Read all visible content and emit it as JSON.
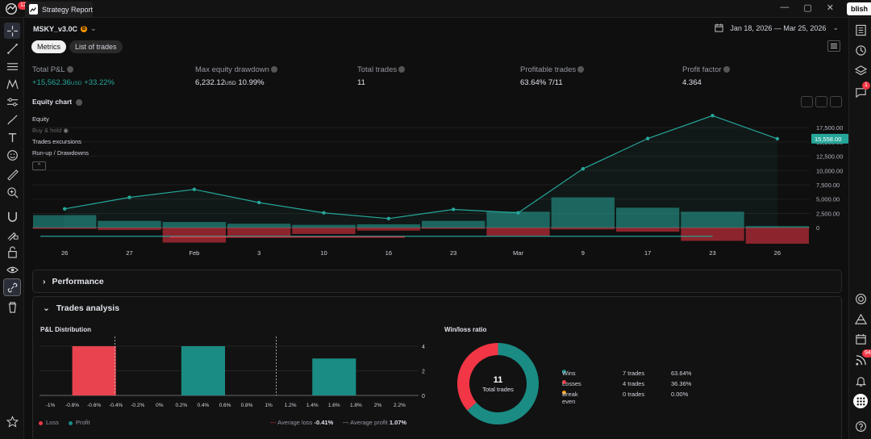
{
  "topbar": {
    "logo_badge": "12",
    "tab_title": "Strategy Report",
    "publish_label": "blish",
    "controls": [
      "—",
      "▢",
      "✕"
    ]
  },
  "strategy": {
    "name": "MSKY_v3.0C",
    "badge": "B",
    "date_range": "Jan 18, 2026 — Mar 25, 2026"
  },
  "tabs": [
    {
      "label": "Metrics",
      "active": true
    },
    {
      "label": "List of trades",
      "active": false
    }
  ],
  "metrics": [
    {
      "label": "Total P&L",
      "value": "+15,562.36",
      "unit": "USD",
      "extra": "+33.22%",
      "positive": true
    },
    {
      "label": "Max equity drawdown",
      "value": "6,232.12",
      "unit": "USD",
      "extra": "10.99%",
      "positive": false
    },
    {
      "label": "Total trades",
      "value": "11",
      "unit": "",
      "extra": "",
      "positive": false
    },
    {
      "label": "Profitable trades",
      "value": "63.64%",
      "unit": "",
      "extra": "7/11",
      "positive": false
    },
    {
      "label": "Profit factor",
      "value": "4.364",
      "unit": "",
      "extra": "",
      "positive": false
    }
  ],
  "equity_chart": {
    "title": "Equity chart",
    "legend": [
      "Equity",
      "Buy & hold",
      "Trades excursions",
      "Run-up / Drawdowns"
    ],
    "collapse_symbol": "^",
    "current_value_label": "15,558.00",
    "colors": {
      "equity": "#26a69a",
      "runup": "#26a69a",
      "drawdown": "#f23645",
      "badge": "#26a69a"
    }
  },
  "chart_data": [
    {
      "type": "line",
      "title": "Equity chart",
      "x_ticks": [
        "26",
        "27",
        "Feb",
        "3",
        "10",
        "16",
        "23",
        "Mar",
        "9",
        "17",
        "23",
        "26"
      ],
      "y_ticks": [
        "17,500.00",
        "15,000.00",
        "12,500.00",
        "10,000.00",
        "7,500.00",
        "5,000.00",
        "2,500.00",
        "0"
      ],
      "ylim": [
        -2800,
        19500
      ],
      "series": [
        {
          "name": "Equity",
          "values": [
            3300,
            5300,
            6700,
            4400,
            2600,
            1600,
            3200,
            2600,
            10300,
            15600,
            19600,
            15558
          ]
        },
        {
          "name": "Run-up / Drawdowns",
          "runup": [
            2200,
            1200,
            1000,
            700,
            500,
            600,
            1200,
            2800,
            5300,
            3500,
            2800,
            300
          ],
          "drawdown": [
            -200,
            -400,
            -2600,
            -1500,
            -1100,
            -500,
            -200,
            -1500,
            -300,
            -700,
            -2300,
            -2800
          ]
        }
      ]
    },
    {
      "type": "bar",
      "title": "P&L Distribution",
      "categories": [
        "-1%",
        "-0.8%",
        "-0.6%",
        "-0.4%",
        "-0.2%",
        "0%",
        "0.2%",
        "0.4%",
        "0.6%",
        "0.8%",
        "1%",
        "1.2%",
        "1.4%",
        "1.6%",
        "1.8%",
        "2%",
        "2.2%"
      ],
      "bars": [
        {
          "from": -0.8,
          "to": -0.4,
          "value": 4,
          "series": "Loss"
        },
        {
          "from": 0.2,
          "to": 0.6,
          "value": 4,
          "series": "Profit"
        },
        {
          "from": 1.4,
          "to": 1.8,
          "value": 3,
          "series": "Profit"
        }
      ],
      "y_ticks": [
        "4",
        "2",
        "0"
      ],
      "ylim": [
        0,
        4
      ],
      "markers": [
        {
          "name": "Average loss",
          "value": -0.41
        },
        {
          "name": "Average profit",
          "value": 1.07
        }
      ],
      "legend": [
        "Loss",
        "Profit"
      ]
    },
    {
      "type": "pie",
      "title": "Win/loss ratio",
      "slices": [
        {
          "name": "Wins",
          "value": 7,
          "color": "#1a8c84"
        },
        {
          "name": "Losses",
          "value": 4,
          "color": "#f23645"
        },
        {
          "name": "Break even",
          "value": 0,
          "color": "#ff9800"
        }
      ]
    }
  ],
  "sections": {
    "performance": "Performance",
    "trades_analysis": "Trades analysis"
  },
  "pl_distribution": {
    "title": "P&L Distribution",
    "legend_loss": "Loss",
    "legend_profit": "Profit",
    "avg_loss_label": "Average loss",
    "avg_loss_value": "-0.41%",
    "avg_profit_label": "Average profit",
    "avg_profit_value": "1.07%"
  },
  "winloss": {
    "title": "Win/loss ratio",
    "center_value": "11",
    "center_label": "Total trades",
    "rows": [
      {
        "label": "Wins",
        "count": "7 trades",
        "pct": "63.64%",
        "color": "#1a8c84"
      },
      {
        "label": "Losses",
        "count": "4 trades",
        "pct": "36.36%",
        "color": "#f23645"
      },
      {
        "label": "Break even",
        "count": "0 trades",
        "pct": "0.00%",
        "color": "#ff9800"
      }
    ]
  },
  "right_badges": {
    "alerts": "1",
    "feed": "94"
  }
}
